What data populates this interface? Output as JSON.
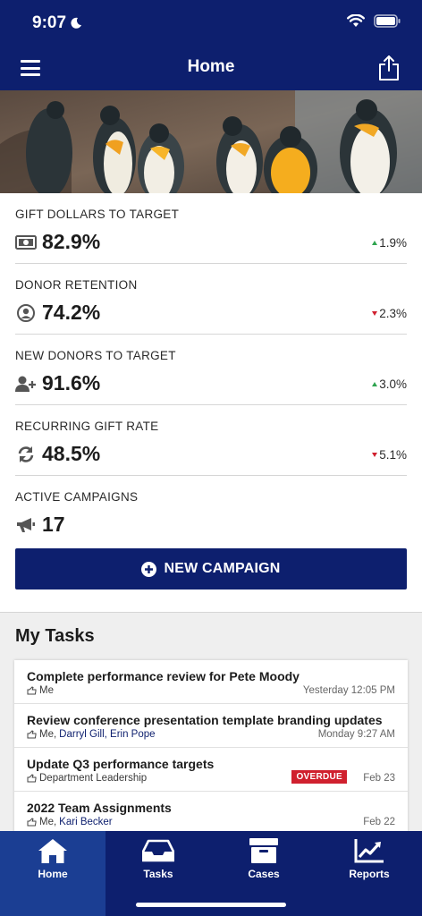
{
  "status": {
    "time": "9:07"
  },
  "header": {
    "title": "Home"
  },
  "kpis": [
    {
      "label": "GIFT DOLLARS TO TARGET",
      "value": "82.9%",
      "change": "1.9%",
      "direction": "up",
      "icon": "money-icon"
    },
    {
      "label": "DONOR RETENTION",
      "value": "74.2%",
      "change": "2.3%",
      "direction": "down",
      "icon": "user-circle-icon"
    },
    {
      "label": "NEW DONORS TO TARGET",
      "value": "91.6%",
      "change": "3.0%",
      "direction": "up",
      "icon": "user-plus-icon"
    },
    {
      "label": "RECURRING GIFT RATE",
      "value": "48.5%",
      "change": "5.1%",
      "direction": "down",
      "icon": "sync-icon"
    }
  ],
  "campaigns": {
    "label": "ACTIVE CAMPAIGNS",
    "value": "17",
    "button_label": "NEW CAMPAIGN"
  },
  "tasks": {
    "title": "My Tasks",
    "items": [
      {
        "title": "Complete performance review for Pete Moody",
        "owner": "Me",
        "others": "",
        "date": "Yesterday 12:05 PM",
        "badge": ""
      },
      {
        "title": "Review conference presentation template branding updates",
        "owner": "Me,",
        "others": "Darryl Gill, Erin Pope",
        "date": "Monday 9:27 AM",
        "badge": ""
      },
      {
        "title": "Update Q3 performance targets",
        "owner": "Department Leadership",
        "others": "",
        "date": "Feb 23",
        "badge": "OVERDUE"
      },
      {
        "title": "2022 Team Assignments",
        "owner": "Me,",
        "others": "Kari Becker",
        "date": "Feb 22",
        "badge": ""
      }
    ]
  },
  "tabbar": {
    "tabs": [
      "Home",
      "Tasks",
      "Cases",
      "Reports"
    ],
    "active": "Home"
  },
  "colors": {
    "primary": "#0d1f6e",
    "active_tab": "#1b3e93",
    "up": "#2ea44f",
    "down": "#d0202e"
  }
}
